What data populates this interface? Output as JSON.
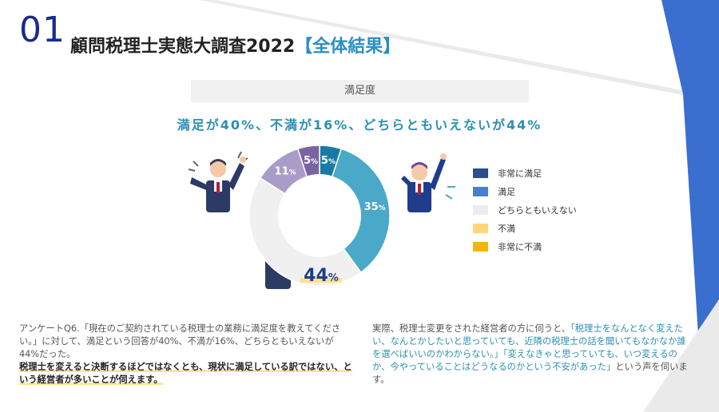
{
  "header": {
    "number": "01",
    "title": "顧問税理士実態大調査2022",
    "subtitle": "【全体結果】"
  },
  "section": {
    "label": "満足度"
  },
  "headline": "満足が40%、不満が16%、どちらともいえないが44%",
  "chart_data": {
    "type": "pie",
    "variant": "donut",
    "categories": [
      "非常に満足",
      "満足",
      "どちらともいえない",
      "不満",
      "非常に不満"
    ],
    "values": [
      5,
      35,
      44,
      11,
      5
    ],
    "value_labels": [
      "5",
      "35",
      "44",
      "11",
      "5"
    ],
    "unit": "%",
    "legend_position": "right",
    "legend": [
      "非常に満足",
      "満足",
      "どちらともいえない",
      "不満",
      "非常に不満"
    ],
    "slice_colors": [
      "#1a7aa6",
      "#4aa8c8",
      "#f0f0f0",
      "#a99cc8",
      "#7b63a3"
    ],
    "legend_colors": [
      "#2c4e8a",
      "#4a7fd0",
      "#ececec",
      "#ffd77a",
      "#f2b705"
    ]
  },
  "text_left": {
    "para": "アンケートQ6.「現在のご契約されている税理士の業務に満足度を教えてください。」に対して、満足という回答が40%、不満が16%、どちらともいえないが44%だった。",
    "bold": "税理士を変えると決断するほどではなくとも、現状に満足している訳ではない、という経営者が多いことが伺えます。"
  },
  "text_right": {
    "intro": "実際、税理士変更をされた経営者の方に伺うと、",
    "quote1": "「税理士をなんとなく変えたい、なんとかしたいと思っていても、近隣の税理士の話を聞いてもなかなか誰を選べばいいのかわからない。」",
    "quote2": "「変えなきゃと思っていても、いつ変えるのか、今やっていることはどうなるのかという不安があった」",
    "outro": "という声を伺います。"
  }
}
